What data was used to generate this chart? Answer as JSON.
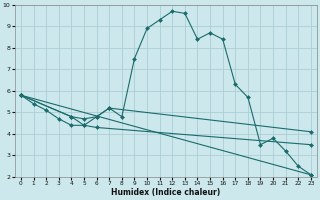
{
  "xlabel": "Humidex (Indice chaleur)",
  "background_color": "#cce8ec",
  "grid_color": "#aacdd4",
  "line_color": "#1a6b6b",
  "xlim": [
    -0.5,
    23.5
  ],
  "ylim": [
    2,
    10
  ],
  "xticks": [
    0,
    1,
    2,
    3,
    4,
    5,
    6,
    7,
    8,
    9,
    10,
    11,
    12,
    13,
    14,
    15,
    16,
    17,
    18,
    19,
    20,
    21,
    22,
    23
  ],
  "yticks": [
    2,
    3,
    4,
    5,
    6,
    7,
    8,
    9,
    10
  ],
  "series": [
    [
      [
        0,
        5.8
      ],
      [
        1,
        5.4
      ],
      [
        2,
        5.1
      ],
      [
        3,
        4.7
      ],
      [
        4,
        4.4
      ],
      [
        5,
        4.4
      ],
      [
        6,
        4.8
      ],
      [
        7,
        5.2
      ],
      [
        8,
        4.8
      ],
      [
        9,
        7.5
      ],
      [
        10,
        8.9
      ],
      [
        11,
        9.3
      ],
      [
        12,
        9.7
      ],
      [
        13,
        9.6
      ],
      [
        14,
        8.4
      ],
      [
        15,
        8.7
      ],
      [
        16,
        8.4
      ],
      [
        17,
        6.3
      ],
      [
        18,
        5.7
      ],
      [
        19,
        3.5
      ],
      [
        20,
        3.8
      ],
      [
        21,
        3.2
      ],
      [
        22,
        2.5
      ],
      [
        23,
        2.1
      ]
    ],
    [
      [
        0,
        5.8
      ],
      [
        4,
        4.8
      ],
      [
        5,
        4.7
      ],
      [
        6,
        4.8
      ],
      [
        7,
        5.2
      ],
      [
        23,
        4.1
      ]
    ],
    [
      [
        0,
        5.8
      ],
      [
        4,
        4.8
      ],
      [
        5,
        4.4
      ],
      [
        6,
        4.3
      ],
      [
        23,
        3.5
      ]
    ],
    [
      [
        0,
        5.8
      ],
      [
        23,
        2.1
      ]
    ]
  ]
}
